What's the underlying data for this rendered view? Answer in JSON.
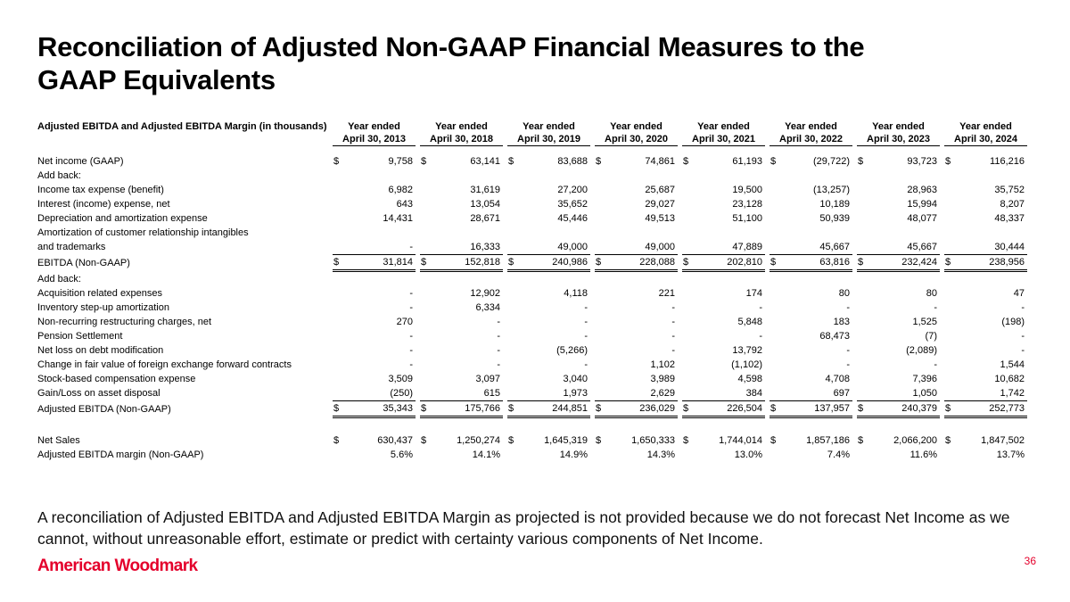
{
  "slide": {
    "title_line1": "Reconciliation of Adjusted Non-GAAP Financial Measures to the",
    "title_line2": "GAAP Equivalents",
    "footnote_line1": "A reconciliation of Adjusted EBITDA and Adjusted EBITDA Margin as projected is not provided because we do not forecast Net Income as we",
    "footnote_line2": "cannot, without unreasonable effort, estimate or predict with certainty various components of Net Income.",
    "logo_text": "American Woodmark",
    "page_number": "36",
    "brand_red": "#e4002b"
  },
  "table": {
    "row_header": "Adjusted EBITDA and Adjusted EBITDA Margin (in thousands)",
    "column_headers": [
      {
        "line1": "Year ended",
        "line2": "April 30, 2013"
      },
      {
        "line1": "Year ended",
        "line2": "April 30, 2018"
      },
      {
        "line1": "Year ended",
        "line2": "April 30, 2019"
      },
      {
        "line1": "Year ended",
        "line2": "April 30, 2020"
      },
      {
        "line1": "Year ended",
        "line2": "April 30, 2021"
      },
      {
        "line1": "Year ended",
        "line2": "April 30, 2022"
      },
      {
        "line1": "Year ended",
        "line2": "April 30, 2023"
      },
      {
        "line1": "Year ended",
        "line2": "April 30, 2024"
      }
    ],
    "rows": [
      {
        "style": "spacer",
        "height": 9
      },
      {
        "label": "Net income (GAAP)",
        "indent": 0,
        "dollar": true,
        "values": [
          "9,758",
          "63,141",
          "83,688",
          "74,861",
          "61,193",
          "(29,722)",
          "93,723",
          "116,216"
        ]
      },
      {
        "label": "Add back:",
        "indent": 0,
        "values": null
      },
      {
        "label": "Income tax expense (benefit)",
        "indent": 1,
        "values": [
          "6,982",
          "31,619",
          "27,200",
          "25,687",
          "19,500",
          "(13,257)",
          "28,963",
          "35,752"
        ]
      },
      {
        "label": "Interest (income) expense, net",
        "indent": 1,
        "values": [
          "643",
          "13,054",
          "35,652",
          "29,027",
          "23,128",
          "10,189",
          "15,994",
          "8,207"
        ]
      },
      {
        "label": "Depreciation and amortization expense",
        "indent": 1,
        "values": [
          "14,431",
          "28,671",
          "45,446",
          "49,513",
          "51,100",
          "50,939",
          "48,077",
          "48,337"
        ]
      },
      {
        "label": "Amortization of customer relationship intangibles",
        "indent": 1,
        "values": null
      },
      {
        "label": "and trademarks",
        "indent": 2,
        "values": [
          "-",
          "16,333",
          "49,000",
          "49,000",
          "47,889",
          "45,667",
          "45,667",
          "30,444"
        ]
      },
      {
        "label": "EBITDA (Non-GAAP)",
        "indent": 0,
        "dollar": true,
        "total": true,
        "values": [
          "31,814",
          "152,818",
          "240,986",
          "228,088",
          "202,810",
          "63,816",
          "232,424",
          "238,956"
        ]
      },
      {
        "label": "Add back:",
        "indent": 0,
        "values": null
      },
      {
        "label": "Acquisition related expenses",
        "indent": 1,
        "values": [
          "-",
          "12,902",
          "4,118",
          "221",
          "174",
          "80",
          "80",
          "47"
        ]
      },
      {
        "label": "Inventory step-up amortization",
        "indent": 1,
        "values": [
          "-",
          "6,334",
          "-",
          "-",
          "-",
          "-",
          "-",
          "-"
        ]
      },
      {
        "label": "Non-recurring restructuring charges, net",
        "indent": 1,
        "values": [
          "270",
          "-",
          "-",
          "-",
          "5,848",
          "183",
          "1,525",
          "(198)"
        ]
      },
      {
        "label": "Pension Settlement",
        "indent": 1,
        "values": [
          "-",
          "-",
          "-",
          "-",
          "-",
          "68,473",
          "(7)",
          "-"
        ]
      },
      {
        "label": "Net loss on debt modification",
        "indent": 1,
        "values": [
          "-",
          "-",
          "(5,266)",
          "-",
          "13,792",
          "-",
          "(2,089)",
          "-"
        ]
      },
      {
        "label": "Change in fair value of foreign exchange forward contracts",
        "indent": 1,
        "values": [
          "-",
          "-",
          "-",
          "1,102",
          "(1,102)",
          "-",
          "-",
          "1,544"
        ]
      },
      {
        "label": "Stock-based compensation expense",
        "indent": 1,
        "values": [
          "3,509",
          "3,097",
          "3,040",
          "3,989",
          "4,598",
          "4,708",
          "7,396",
          "10,682"
        ]
      },
      {
        "label": "Gain/Loss on asset disposal",
        "indent": 1,
        "values": [
          "(250)",
          "615",
          "1,973",
          "2,629",
          "384",
          "697",
          "1,050",
          "1,742"
        ]
      },
      {
        "label": "Adjusted EBITDA (Non-GAAP)",
        "indent": 0,
        "dollar": true,
        "total": true,
        "values": [
          "35,343",
          "175,766",
          "244,851",
          "236,029",
          "226,504",
          "137,957",
          "240,379",
          "252,773"
        ]
      },
      {
        "style": "spacer",
        "height": 17
      },
      {
        "label": "Net Sales",
        "indent": 0,
        "dollar": true,
        "values": [
          "630,437",
          "1,250,274",
          "1,645,319",
          "1,650,333",
          "1,744,014",
          "1,857,186",
          "2,066,200",
          "1,847,502"
        ]
      },
      {
        "label": "Adjusted EBITDA margin (Non-GAAP)",
        "indent": 0,
        "values": [
          "5.6%",
          "14.1%",
          "14.9%",
          "14.3%",
          "13.0%",
          "7.4%",
          "11.6%",
          "13.7%"
        ]
      }
    ]
  }
}
